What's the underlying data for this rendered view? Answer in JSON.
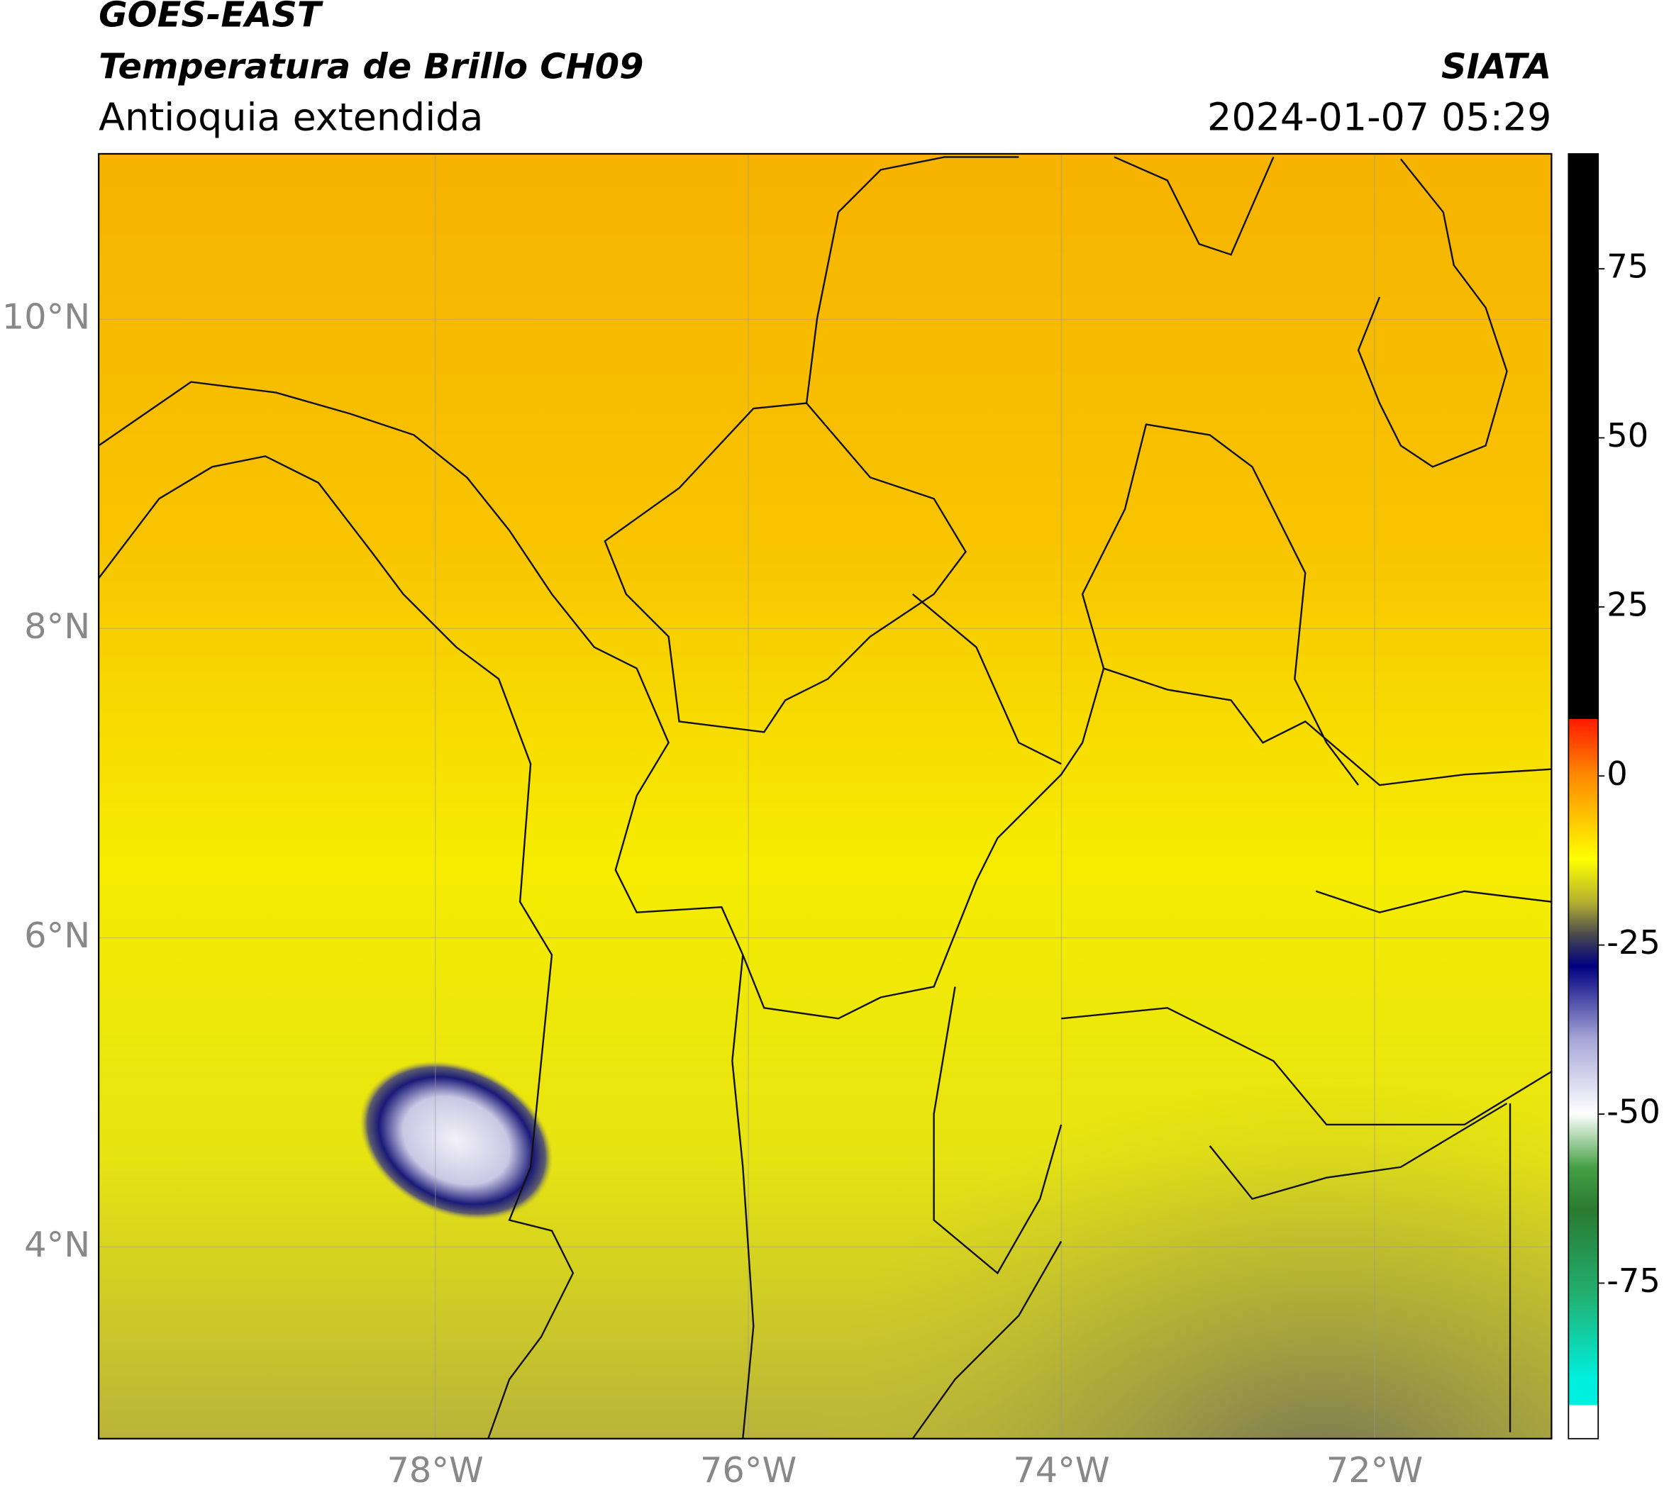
{
  "header": {
    "title": "GOES-EAST",
    "subtitle": "Temperatura de Brillo CH09",
    "region": "Antioquia extendida",
    "source": "SIATA",
    "datetime": "2024-01-07 05:29"
  },
  "chart_data": {
    "type": "map",
    "xlim": [
      -80.15,
      -70.87
    ],
    "ylim": [
      2.76,
      11.07
    ],
    "xticks": [
      {
        "value": -78,
        "label": "78°W"
      },
      {
        "value": -76,
        "label": "76°W"
      },
      {
        "value": -74,
        "label": "74°W"
      },
      {
        "value": -72,
        "label": "72°W"
      }
    ],
    "yticks": [
      {
        "value": 4,
        "label": "4°N"
      },
      {
        "value": 6,
        "label": "6°N"
      },
      {
        "value": 8,
        "label": "8°N"
      },
      {
        "value": 10,
        "label": "10°N"
      }
    ],
    "grid": true,
    "colorbar": {
      "lim": [
        -98,
        92
      ],
      "ticks": [
        75,
        50,
        25,
        0,
        -25,
        -50,
        -75
      ]
    }
  }
}
